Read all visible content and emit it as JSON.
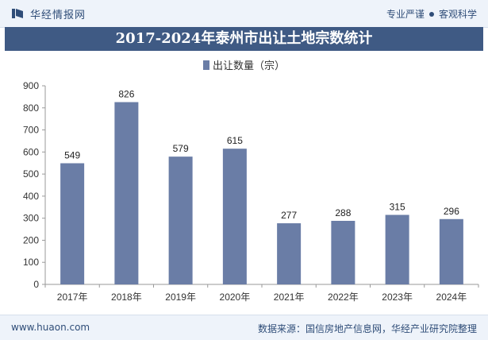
{
  "header": {
    "brand": "华经情报网",
    "tagline_left": "专业严谨",
    "tagline_right": "客观科学"
  },
  "footer": {
    "website": "www.huaon.com",
    "source": "数据来源：国信房地产信息网，华经产业研究院整理"
  },
  "colors": {
    "bar": "#6a7da6",
    "title_bg": "#3f5a84",
    "brand": "#2f4d78"
  },
  "chart_data": {
    "type": "bar",
    "title": "2017-2024年泰州市出让土地宗数统计",
    "legend": "出让数量（宗）",
    "legend_position": "top",
    "categories": [
      "2017年",
      "2018年",
      "2019年",
      "2020年",
      "2021年",
      "2022年",
      "2023年",
      "2024年"
    ],
    "series": [
      {
        "name": "出让数量（宗）",
        "values": [
          549,
          826,
          579,
          615,
          277,
          288,
          315,
          296
        ]
      }
    ],
    "data_labels": [
      "549",
      "826",
      "579",
      "615",
      "277",
      "288",
      "315",
      "296"
    ],
    "ylim": [
      0,
      900
    ],
    "yticks": [
      "0",
      "100",
      "200",
      "300",
      "400",
      "500",
      "600",
      "700",
      "800",
      "900"
    ],
    "grid": false,
    "xlabel": "",
    "ylabel": ""
  }
}
